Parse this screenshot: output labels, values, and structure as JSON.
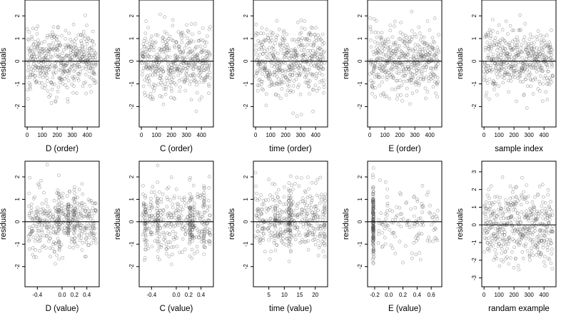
{
  "chart_data": [
    {
      "type": "scatter",
      "xlabel": "D (order)",
      "ylabel": "residuals",
      "xlim": [
        -15,
        480
      ],
      "ylim": [
        -2.9,
        2.7
      ],
      "xticks": [
        "0",
        "100",
        "200",
        "300",
        "400"
      ],
      "xtick_values": [
        0,
        100,
        200,
        300,
        400
      ],
      "yticks": [
        "-2",
        "-1",
        "0",
        "1",
        "2"
      ],
      "ytick_values": [
        -2,
        -1,
        0,
        1,
        2
      ],
      "reference_line_y": 0,
      "n_points": 460,
      "x_pattern": "index",
      "y_sd": 0.72,
      "clusters": []
    },
    {
      "type": "scatter",
      "xlabel": "C (order)",
      "ylabel": "residuals",
      "xlim": [
        -15,
        480
      ],
      "ylim": [
        -2.9,
        2.7
      ],
      "xticks": [
        "0",
        "100",
        "200",
        "300",
        "400"
      ],
      "xtick_values": [
        0,
        100,
        200,
        300,
        400
      ],
      "yticks": [
        "-2",
        "-1",
        "0",
        "1",
        "2"
      ],
      "ytick_values": [
        -2,
        -1,
        0,
        1,
        2
      ],
      "reference_line_y": 0,
      "n_points": 460,
      "x_pattern": "index",
      "y_sd": 0.72,
      "clusters": []
    },
    {
      "type": "scatter",
      "xlabel": "time (order)",
      "ylabel": "residuals",
      "xlim": [
        -15,
        480
      ],
      "ylim": [
        -2.9,
        2.7
      ],
      "xticks": [
        "0",
        "100",
        "200",
        "300",
        "400"
      ],
      "xtick_values": [
        0,
        100,
        200,
        300,
        400
      ],
      "yticks": [
        "-2",
        "-1",
        "0",
        "1",
        "2"
      ],
      "ytick_values": [
        -2,
        -1,
        0,
        1,
        2
      ],
      "reference_line_y": 0,
      "n_points": 460,
      "x_pattern": "index",
      "y_sd": 0.72,
      "clusters": []
    },
    {
      "type": "scatter",
      "xlabel": "E (order)",
      "ylabel": "residuals",
      "xlim": [
        -15,
        480
      ],
      "ylim": [
        -2.9,
        2.7
      ],
      "xticks": [
        "0",
        "100",
        "200",
        "300",
        "400"
      ],
      "xtick_values": [
        0,
        100,
        200,
        300,
        400
      ],
      "yticks": [
        "-2",
        "-1",
        "0",
        "1",
        "2"
      ],
      "ytick_values": [
        -2,
        -1,
        0,
        1,
        2
      ],
      "reference_line_y": 0,
      "n_points": 460,
      "x_pattern": "index",
      "y_sd": 0.72,
      "clusters": []
    },
    {
      "type": "scatter",
      "xlabel": "sample index",
      "ylabel": "residuals",
      "xlim": [
        -15,
        480
      ],
      "ylim": [
        -2.9,
        2.7
      ],
      "xticks": [
        "0",
        "100",
        "200",
        "300",
        "400"
      ],
      "xtick_values": [
        0,
        100,
        200,
        300,
        400
      ],
      "yticks": [
        "-2",
        "-1",
        "0",
        "1",
        "2"
      ],
      "ytick_values": [
        -2,
        -1,
        0,
        1,
        2
      ],
      "reference_line_y": 0,
      "n_points": 460,
      "x_pattern": "index",
      "y_sd": 0.72,
      "clusters": []
    },
    {
      "type": "scatter",
      "xlabel": "D (value)",
      "ylabel": "residuals",
      "xlim": [
        -0.6,
        0.6
      ],
      "ylim": [
        -2.9,
        2.7
      ],
      "xticks": [
        "-0.4",
        "0.0",
        "0.2",
        "0.4"
      ],
      "xtick_values": [
        -0.4,
        0.0,
        0.2,
        0.4
      ],
      "yticks": [
        "-2",
        "-1",
        "0",
        "1",
        "2"
      ],
      "ytick_values": [
        -2,
        -1,
        0,
        1,
        2
      ],
      "reference_line_y": 0,
      "n_points": 460,
      "x_pattern": "uniform",
      "x_range": [
        -0.55,
        0.55
      ],
      "y_sd": 0.72,
      "clusters": [
        {
          "x": -0.05,
          "n": 30
        },
        {
          "x": 0.1,
          "n": 30
        },
        {
          "x": 0.2,
          "n": 20
        }
      ]
    },
    {
      "type": "scatter",
      "xlabel": "C (value)",
      "ylabel": "residuals",
      "xlim": [
        -0.6,
        0.6
      ],
      "ylim": [
        -2.9,
        2.7
      ],
      "xticks": [
        "-0.4",
        "0.0",
        "0.2",
        "0.4"
      ],
      "xtick_values": [
        -0.4,
        0.0,
        0.2,
        0.4
      ],
      "yticks": [
        "-2",
        "-1",
        "0",
        "1",
        "2"
      ],
      "ytick_values": [
        -2,
        -1,
        0,
        1,
        2
      ],
      "reference_line_y": 0,
      "n_points": 460,
      "x_pattern": "uniform",
      "x_range": [
        -0.55,
        0.55
      ],
      "y_sd": 0.72,
      "clusters": [
        {
          "x": -0.5,
          "n": 25
        },
        {
          "x": -0.3,
          "n": 25
        },
        {
          "x": 0.22,
          "n": 40
        },
        {
          "x": 0.26,
          "n": 25
        },
        {
          "x": 0.45,
          "n": 25
        }
      ]
    },
    {
      "type": "scatter",
      "xlabel": "time (value)",
      "ylabel": "residuals",
      "xlim": [
        0,
        24
      ],
      "ylim": [
        -2.9,
        2.7
      ],
      "xticks": [
        "5",
        "10",
        "15",
        "20"
      ],
      "xtick_values": [
        5,
        10,
        15,
        20
      ],
      "yticks": [
        "-2",
        "-1",
        "0",
        "1",
        "2"
      ],
      "ytick_values": [
        -2,
        -1,
        0,
        1,
        2
      ],
      "reference_line_y": 0,
      "n_points": 460,
      "x_pattern": "uniform",
      "x_range": [
        0.5,
        23.5
      ],
      "y_sd": 0.72,
      "clusters": [
        {
          "x": 7,
          "n": 20
        },
        {
          "x": 11.5,
          "n": 40
        },
        {
          "x": 12,
          "n": 25
        },
        {
          "x": 23,
          "n": 20
        }
      ]
    },
    {
      "type": "scatter",
      "xlabel": "E (value)",
      "ylabel": "residuals",
      "xlim": [
        -0.3,
        0.75
      ],
      "ylim": [
        -2.9,
        2.7
      ],
      "xticks": [
        "-0.2",
        "0.0",
        "0.2",
        "0.4",
        "0.6"
      ],
      "xtick_values": [
        -0.2,
        0.0,
        0.2,
        0.4,
        0.6
      ],
      "yticks": [
        "-2",
        "-1",
        "0",
        "1",
        "2"
      ],
      "ytick_values": [
        -2,
        -1,
        0,
        1,
        2
      ],
      "reference_line_y": 0,
      "n_points": 300,
      "x_pattern": "uniform",
      "x_range": [
        -0.15,
        0.7
      ],
      "y_sd": 0.72,
      "clusters": [
        {
          "x": -0.22,
          "n": 170
        }
      ]
    },
    {
      "type": "scatter",
      "xlabel": "randam example",
      "ylabel": "residuals",
      "xlim": [
        -15,
        480
      ],
      "ylim": [
        -3.5,
        3.6
      ],
      "xticks": [
        "0",
        "100",
        "200",
        "300",
        "400"
      ],
      "xtick_values": [
        0,
        100,
        200,
        300,
        400
      ],
      "yticks": [
        "-3",
        "-2",
        "-1",
        "0",
        "1",
        "2",
        "3"
      ],
      "ytick_values": [
        -3,
        -2,
        -1,
        0,
        1,
        2,
        3
      ],
      "reference_line_y": 0,
      "n_points": 460,
      "x_pattern": "index",
      "y_sd": 1.0,
      "clusters": []
    }
  ]
}
